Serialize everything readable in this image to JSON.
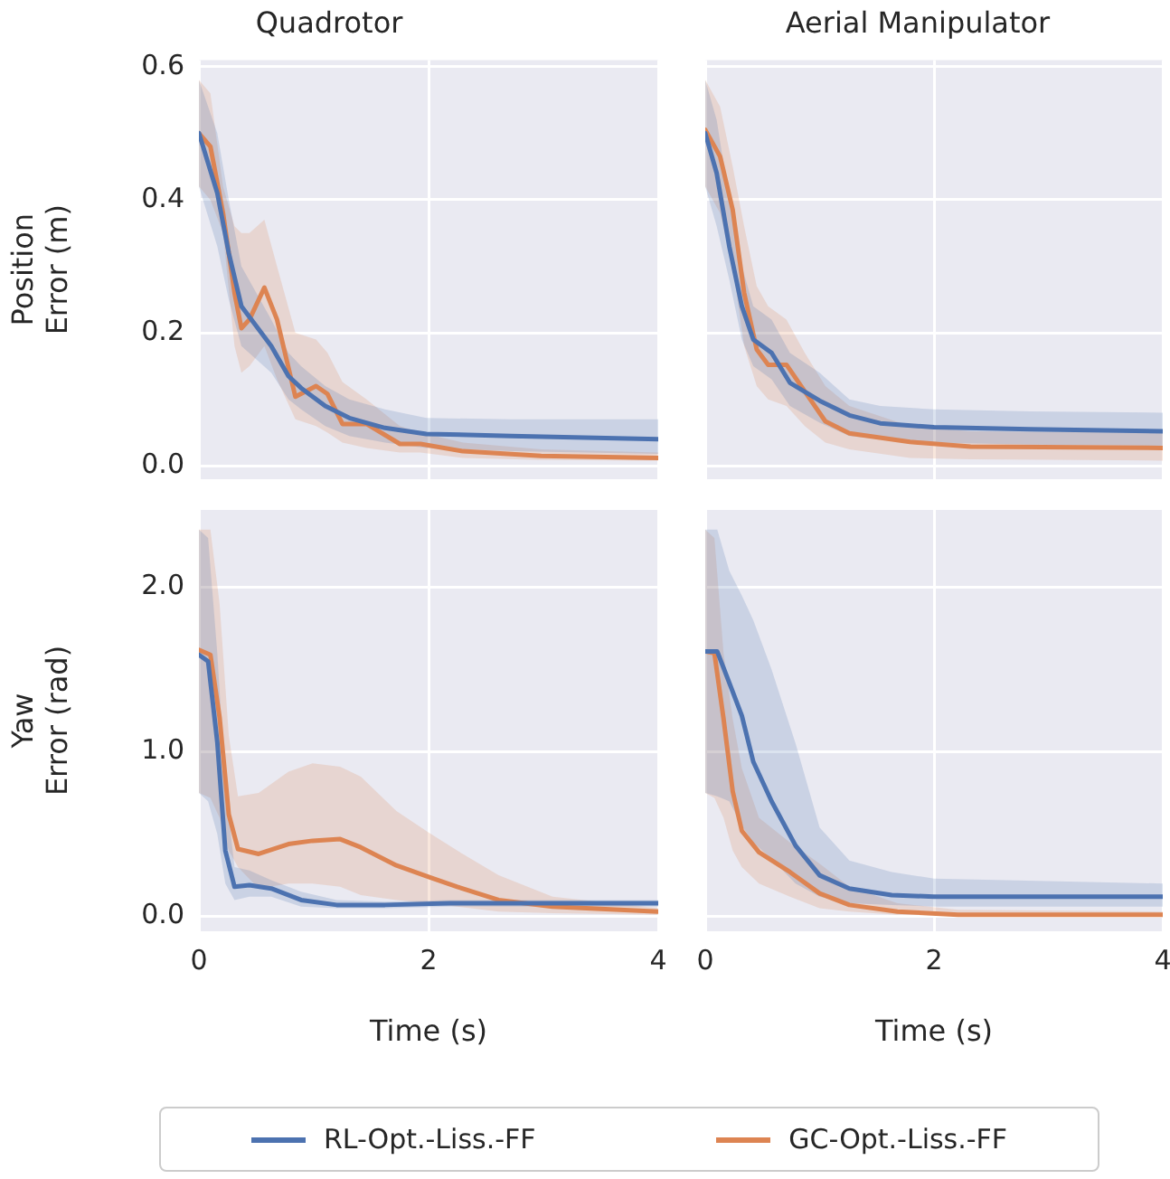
{
  "chart_data": [
    {
      "type": "line",
      "title": "Quadrotor",
      "ylabel": "Position\nError (m)",
      "xlim": [
        0,
        4
      ],
      "xticks": [
        0,
        2,
        4
      ],
      "ylim": [
        -0.02,
        0.61
      ],
      "yticks": [
        {
          "value": 0,
          "label": "0.0"
        },
        {
          "value": 0.2,
          "label": "0.2"
        },
        {
          "value": 0.4,
          "label": "0.4"
        },
        {
          "value": 0.6,
          "label": "0.6"
        }
      ],
      "grid": true,
      "tick_labels": "y",
      "legend": "bottom",
      "series": [
        {
          "name": "RL-Opt.-Liss.-FF",
          "color": "#4c72b0",
          "x": [
            0,
            0.16,
            0.26,
            0.37,
            0.5,
            0.63,
            0.78,
            0.89,
            1.1,
            1.31,
            1.62,
            1.98,
            2.72,
            4
          ],
          "values": [
            0.5,
            0.41,
            0.32,
            0.24,
            0.21,
            0.18,
            0.135,
            0.117,
            0.09,
            0.072,
            0.057,
            0.048,
            0.045,
            0.04
          ],
          "upper": [
            0.58,
            0.5,
            0.4,
            0.3,
            0.26,
            0.22,
            0.17,
            0.15,
            0.12,
            0.1,
            0.085,
            0.072,
            0.07,
            0.07
          ],
          "lower": [
            0.42,
            0.33,
            0.25,
            0.18,
            0.16,
            0.14,
            0.1,
            0.085,
            0.06,
            0.045,
            0.035,
            0.027,
            0.022,
            0.018
          ]
        },
        {
          "name": "GC-Opt.-Liss.-FF",
          "color": "#dd8452",
          "x": [
            0,
            0.1,
            0.21,
            0.31,
            0.37,
            0.44,
            0.57,
            0.68,
            0.84,
            1.02,
            1.12,
            1.25,
            1.46,
            1.75,
            1.93,
            2.3,
            2.98,
            4
          ],
          "values": [
            0.5,
            0.48,
            0.38,
            0.26,
            0.207,
            0.22,
            0.268,
            0.22,
            0.104,
            0.12,
            0.108,
            0.063,
            0.063,
            0.033,
            0.033,
            0.022,
            0.015,
            0.012
          ],
          "upper": [
            0.58,
            0.56,
            0.42,
            0.36,
            0.35,
            0.35,
            0.37,
            0.3,
            0.2,
            0.19,
            0.17,
            0.126,
            0.1,
            0.06,
            0.05,
            0.035,
            0.025,
            0.02
          ],
          "lower": [
            0.42,
            0.4,
            0.35,
            0.18,
            0.14,
            0.15,
            0.18,
            0.13,
            0.07,
            0.06,
            0.05,
            0.035,
            0.027,
            0.02,
            0.02,
            0.012,
            0.009,
            0.008
          ]
        }
      ]
    },
    {
      "type": "line",
      "title": "Aerial Manipulator",
      "xlim": [
        0,
        4
      ],
      "xticks": [
        0,
        2,
        4
      ],
      "ylim": [
        -0.02,
        0.61
      ],
      "yticks": [
        0,
        0.2,
        0.4,
        0.6
      ],
      "grid": true,
      "tick_labels": false,
      "series": [
        {
          "color": "#4c72b0",
          "x": [
            0,
            0.1,
            0.21,
            0.32,
            0.42,
            0.58,
            0.74,
            1.0,
            1.26,
            1.53,
            2.0,
            2.84,
            4
          ],
          "values": [
            0.5,
            0.44,
            0.33,
            0.24,
            0.19,
            0.17,
            0.125,
            0.098,
            0.076,
            0.064,
            0.058,
            0.055,
            0.052
          ],
          "upper": [
            0.58,
            0.52,
            0.4,
            0.3,
            0.24,
            0.22,
            0.17,
            0.14,
            0.1,
            0.09,
            0.085,
            0.082,
            0.08
          ],
          "lower": [
            0.42,
            0.36,
            0.28,
            0.19,
            0.15,
            0.13,
            0.09,
            0.065,
            0.045,
            0.04,
            0.035,
            0.032,
            0.03
          ]
        },
        {
          "color": "#dd8452",
          "x": [
            0,
            0.13,
            0.24,
            0.34,
            0.45,
            0.55,
            0.71,
            0.87,
            1.05,
            1.26,
            1.79,
            2.32,
            4
          ],
          "values": [
            0.505,
            0.465,
            0.385,
            0.26,
            0.175,
            0.152,
            0.152,
            0.112,
            0.067,
            0.049,
            0.036,
            0.029,
            0.027
          ],
          "upper": [
            0.58,
            0.54,
            0.45,
            0.36,
            0.27,
            0.24,
            0.22,
            0.17,
            0.12,
            0.09,
            0.06,
            0.052,
            0.05
          ],
          "lower": [
            0.42,
            0.38,
            0.3,
            0.18,
            0.12,
            0.1,
            0.09,
            0.06,
            0.035,
            0.025,
            0.012,
            0.01,
            0.008
          ]
        }
      ]
    },
    {
      "type": "line",
      "xlabel": "Time (s)",
      "ylabel": "Yaw\nError (rad)",
      "xlim": [
        0,
        4
      ],
      "xticks": [
        0,
        2,
        4
      ],
      "ylim": [
        -0.09,
        2.47
      ],
      "yticks": [
        {
          "value": 0,
          "label": "0.0"
        },
        {
          "value": 1,
          "label": "1.0"
        },
        {
          "value": 2,
          "label": "2.0"
        }
      ],
      "grid": true,
      "series": [
        {
          "color": "#4c72b0",
          "x": [
            0,
            0.08,
            0.16,
            0.23,
            0.31,
            0.44,
            0.63,
            0.89,
            1.2,
            1.62,
            2.19,
            2.98,
            4
          ],
          "values": [
            1.59,
            1.55,
            1.06,
            0.4,
            0.18,
            0.19,
            0.17,
            0.1,
            0.07,
            0.07,
            0.08,
            0.08,
            0.08
          ],
          "upper": [
            2.35,
            2.3,
            1.6,
            0.8,
            0.3,
            0.28,
            0.22,
            0.15,
            0.1,
            0.09,
            0.1,
            0.1,
            0.1
          ],
          "lower": [
            0.75,
            0.7,
            0.5,
            0.2,
            0.1,
            0.12,
            0.12,
            0.06,
            0.05,
            0.05,
            0.06,
            0.06,
            0.06
          ]
        },
        {
          "color": "#dd8452",
          "x": [
            0,
            0.1,
            0.18,
            0.26,
            0.34,
            0.52,
            0.78,
            0.99,
            1.23,
            1.41,
            1.72,
            2.0,
            2.25,
            2.61,
            3.08,
            4
          ],
          "values": [
            1.62,
            1.59,
            1.21,
            0.62,
            0.41,
            0.38,
            0.44,
            0.46,
            0.47,
            0.42,
            0.31,
            0.24,
            0.18,
            0.1,
            0.06,
            0.03
          ],
          "upper": [
            2.35,
            2.35,
            1.9,
            1.1,
            0.73,
            0.75,
            0.88,
            0.93,
            0.91,
            0.85,
            0.64,
            0.51,
            0.4,
            0.25,
            0.12,
            0.05
          ],
          "lower": [
            0.75,
            0.72,
            0.6,
            0.4,
            0.3,
            0.17,
            0.2,
            0.2,
            0.18,
            0.13,
            0.1,
            0.08,
            0.06,
            0.03,
            0.02,
            0.01
          ]
        }
      ]
    },
    {
      "type": "line",
      "xlabel": "Time (s)",
      "xlim": [
        0,
        4
      ],
      "xticks": [
        0,
        2,
        4
      ],
      "ylim": [
        -0.09,
        2.47
      ],
      "yticks": [
        0,
        1,
        2
      ],
      "grid": true,
      "tick_labels": "x",
      "series": [
        {
          "color": "#4c72b0",
          "x": [
            0,
            0.105,
            0.21,
            0.32,
            0.42,
            0.58,
            0.79,
            1.0,
            1.26,
            1.63,
            2,
            4
          ],
          "values": [
            1.61,
            1.61,
            1.42,
            1.22,
            0.94,
            0.7,
            0.43,
            0.25,
            0.17,
            0.13,
            0.12,
            0.12
          ],
          "upper": [
            2.35,
            2.35,
            2.1,
            1.95,
            1.8,
            1.5,
            1.05,
            0.54,
            0.34,
            0.27,
            0.23,
            0.2
          ],
          "lower": [
            0.75,
            0.73,
            0.7,
            0.55,
            0.45,
            0.35,
            0.2,
            0.12,
            0.08,
            0.07,
            0.06,
            0.06
          ]
        },
        {
          "color": "#dd8452",
          "x": [
            0,
            0.08,
            0.16,
            0.24,
            0.32,
            0.47,
            0.74,
            1.0,
            1.26,
            1.68,
            2.21,
            4
          ],
          "values": [
            1.61,
            1.6,
            1.2,
            0.76,
            0.52,
            0.39,
            0.27,
            0.14,
            0.07,
            0.03,
            0.01,
            0.01
          ],
          "upper": [
            2.35,
            2.3,
            1.6,
            1.2,
            0.9,
            0.6,
            0.45,
            0.32,
            0.18,
            0.08,
            0.04,
            0.03
          ],
          "lower": [
            0.75,
            0.72,
            0.6,
            0.4,
            0.3,
            0.2,
            0.12,
            0.05,
            0.03,
            0.01,
            0.01,
            0.0
          ]
        }
      ]
    }
  ]
}
